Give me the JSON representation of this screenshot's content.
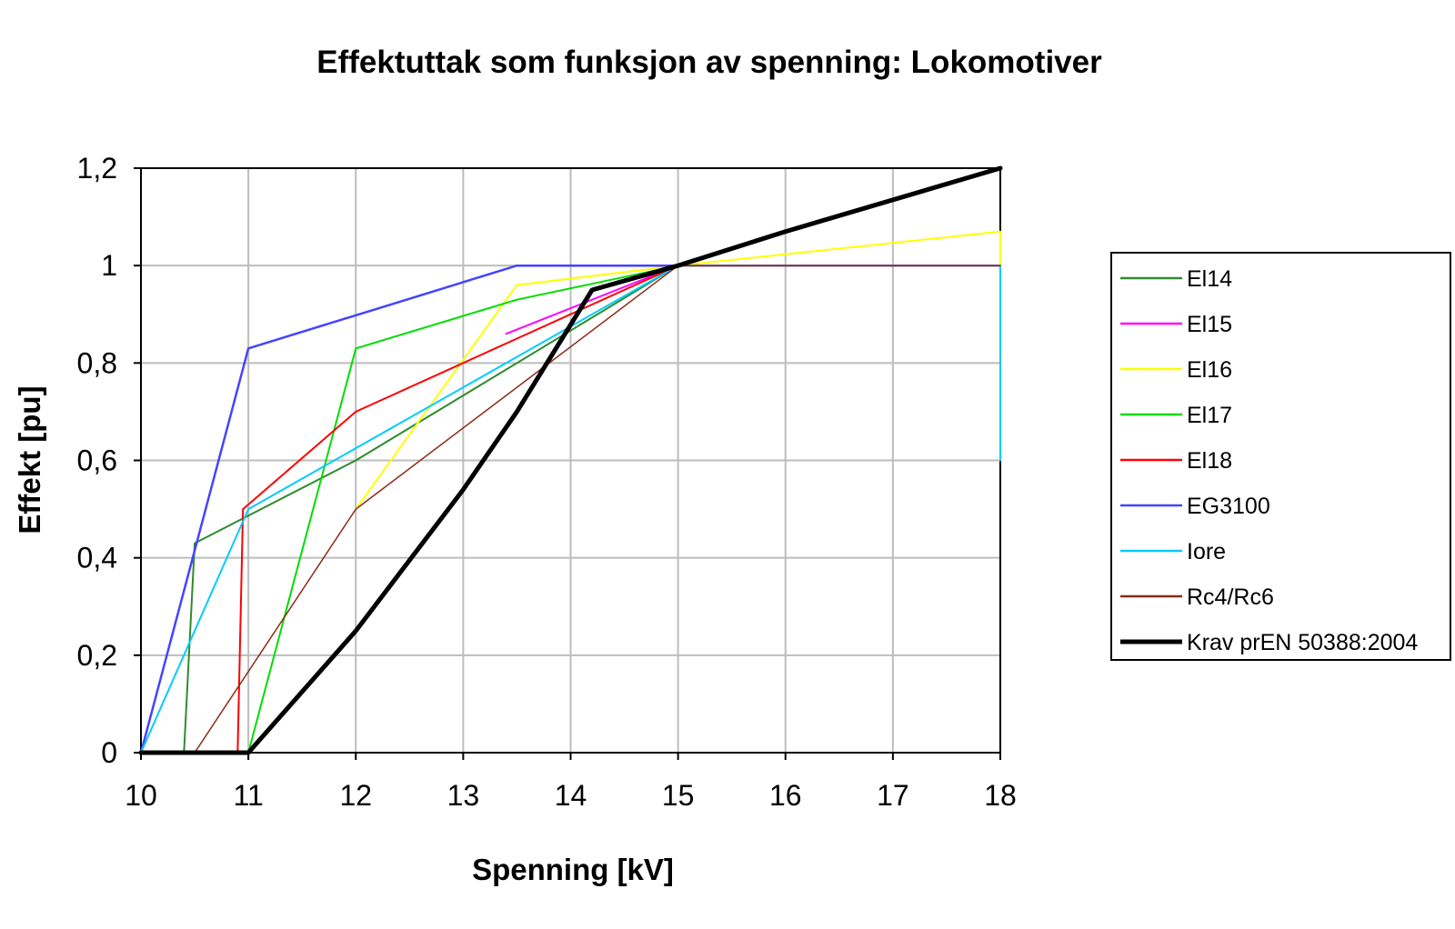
{
  "chart_data": {
    "type": "line",
    "title": "Effektuttak som funksjon av spenning: Lokomotiver",
    "xlabel": "Spenning [kV]",
    "ylabel": "Effekt [pu]",
    "xlim": [
      10,
      18
    ],
    "ylim": [
      0,
      1.2
    ],
    "x_ticks": [
      10,
      11,
      12,
      13,
      14,
      15,
      16,
      17,
      18
    ],
    "x_tick_labels": [
      "10",
      "11",
      "12",
      "13",
      "14",
      "15",
      "16",
      "17",
      "18"
    ],
    "y_ticks": [
      0,
      0.2,
      0.4,
      0.6,
      0.8,
      1.0,
      1.2
    ],
    "y_tick_labels": [
      "0",
      "0,2",
      "0,4",
      "0,6",
      "0,8",
      "1",
      "1,2"
    ],
    "grid": true,
    "legend_position": "right",
    "series": [
      {
        "name": "El14",
        "color": "#2e8b2e",
        "width": 2,
        "points": [
          [
            10,
            0
          ],
          [
            10.4,
            0
          ],
          [
            10.5,
            0.43
          ],
          [
            12,
            0.6
          ],
          [
            15,
            1
          ],
          [
            16,
            1.07
          ],
          [
            18,
            1.2
          ]
        ]
      },
      {
        "name": "El15",
        "color": "#ff00ff",
        "width": 2,
        "points": [
          [
            13.4,
            0.86
          ],
          [
            15,
            1
          ],
          [
            18,
            1
          ]
        ]
      },
      {
        "name": "El16",
        "color": "#ffff00",
        "width": 2,
        "points": [
          [
            12,
            0.5
          ],
          [
            13.5,
            0.96
          ],
          [
            15,
            1
          ],
          [
            18,
            1.07
          ],
          [
            18,
            1
          ]
        ]
      },
      {
        "name": "El17",
        "color": "#00dd00",
        "width": 2,
        "points": [
          [
            11,
            0
          ],
          [
            12,
            0.83
          ],
          [
            13.5,
            0.93
          ],
          [
            15,
            1
          ],
          [
            16,
            1.07
          ],
          [
            18,
            1.2
          ]
        ]
      },
      {
        "name": "El18",
        "color": "#ff0000",
        "width": 2,
        "points": [
          [
            10.9,
            0
          ],
          [
            10.95,
            0.5
          ],
          [
            12,
            0.7
          ],
          [
            13.5,
            0.85
          ],
          [
            15,
            1
          ],
          [
            18,
            1
          ]
        ]
      },
      {
        "name": "EG3100",
        "color": "#4444ff",
        "width": 2.5,
        "points": [
          [
            10,
            0
          ],
          [
            11,
            0.83
          ],
          [
            13.5,
            1
          ],
          [
            15,
            1
          ]
        ]
      },
      {
        "name": "Iore",
        "color": "#00ccff",
        "width": 2,
        "points": [
          [
            10,
            0
          ],
          [
            11,
            0.5
          ],
          [
            15,
            1
          ],
          [
            18,
            1
          ],
          [
            18,
            0.6
          ]
        ]
      },
      {
        "name": "Rc4/Rc6",
        "color": "#8b2a1a",
        "width": 1.5,
        "points": [
          [
            10.5,
            0
          ],
          [
            12,
            0.5
          ],
          [
            15,
            1
          ],
          [
            18,
            1
          ]
        ]
      },
      {
        "name": "Krav prEN 50388:2004",
        "color": "#000000",
        "width": 5,
        "points": [
          [
            10,
            0
          ],
          [
            11,
            0
          ],
          [
            12,
            0.25
          ],
          [
            13,
            0.54
          ],
          [
            13.5,
            0.7
          ],
          [
            14.2,
            0.95
          ],
          [
            15,
            1
          ],
          [
            16,
            1.07
          ],
          [
            18,
            1.2
          ]
        ]
      }
    ]
  }
}
